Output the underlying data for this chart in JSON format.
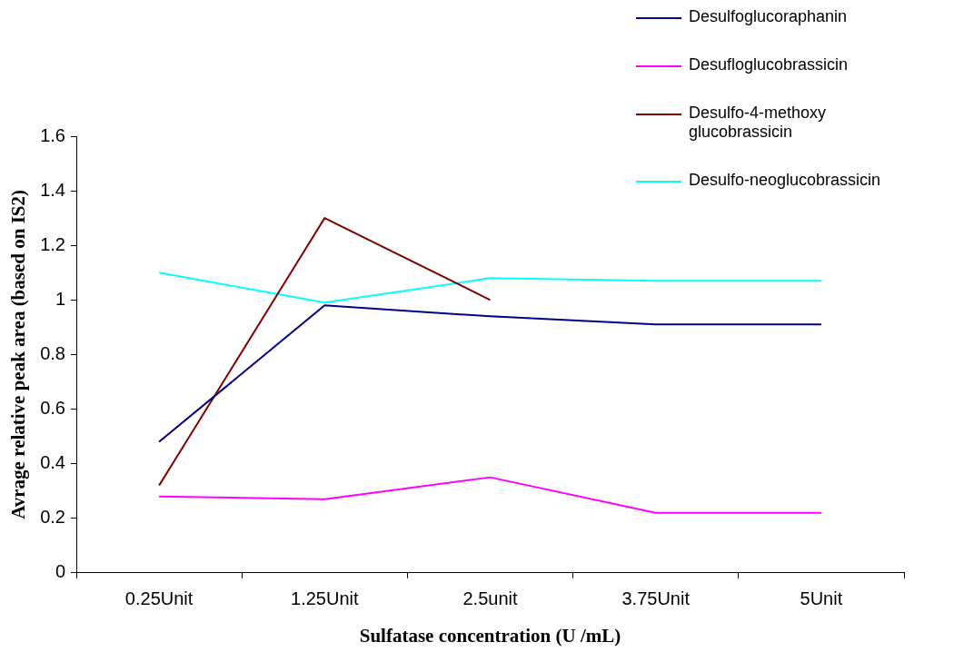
{
  "chart_data": {
    "type": "line",
    "xlabel": "Sulfatase concentration (U /mL)",
    "ylabel": "Avrage relative peak area (based on IS2)",
    "categories": [
      "0.25Unit",
      "1.25Unit",
      "2.5unit",
      "3.75Unit",
      "5Unit"
    ],
    "series": [
      {
        "name": "Desulfoglucoraphanin",
        "color": "#000080",
        "values": [
          0.48,
          0.98,
          0.94,
          0.91,
          0.91
        ]
      },
      {
        "name": "Desufloglucobrassicin",
        "color": "#ff00ff",
        "values": [
          0.28,
          0.27,
          0.35,
          0.22,
          0.22
        ]
      },
      {
        "name": "Desulfo-4-methoxy glucobrassicin",
        "color": "#800000",
        "values": [
          0.32,
          1.3,
          1.0,
          null,
          null
        ]
      },
      {
        "name": "Desulfo-neoglucobrassicin",
        "color": "#00ffff",
        "values": [
          1.1,
          0.99,
          1.08,
          1.07,
          1.07
        ]
      }
    ],
    "ylim": [
      0,
      1.6
    ],
    "yticks": [
      0,
      0.2,
      0.4,
      0.6,
      0.8,
      1,
      1.2,
      1.4,
      1.6
    ],
    "grid": false,
    "legend": "top right",
    "marker": "none",
    "line_style": "solid"
  }
}
